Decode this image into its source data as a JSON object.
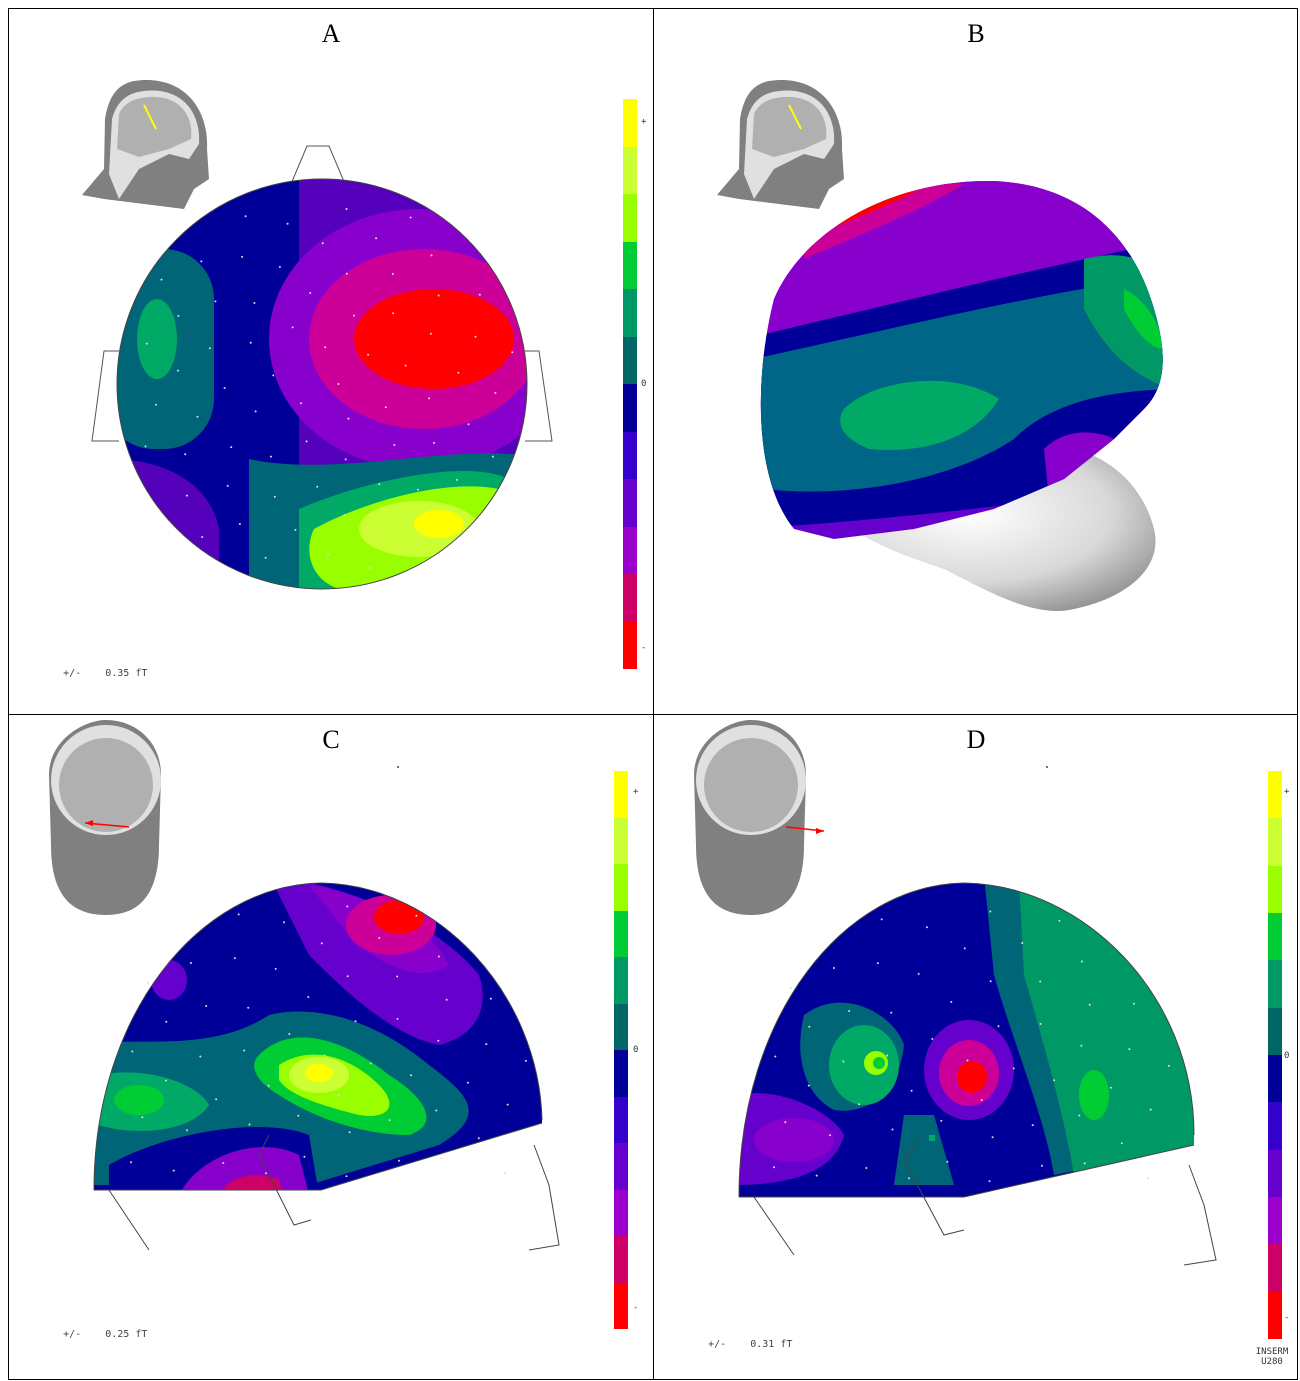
{
  "panels": {
    "A": {
      "label": "A",
      "scale_prefix": "+/-",
      "scale_value": "0.35 fT"
    },
    "B": {
      "label": "B"
    },
    "C": {
      "label": "C",
      "scale_prefix": "+/-",
      "scale_value": "0.25 fT"
    },
    "D": {
      "label": "D",
      "scale_prefix": "+/-",
      "scale_value": "0.31 fT",
      "credit_line1": "INSERM",
      "credit_line2": "U280"
    }
  },
  "colorbar": {
    "plus": "+",
    "zero": "0",
    "minus": "-",
    "colors": [
      "#ffff00",
      "#ccff33",
      "#99ff00",
      "#00cc33",
      "#009966",
      "#006666",
      "#000099",
      "#3300cc",
      "#6600cc",
      "#9900cc",
      "#cc0066",
      "#ff0000"
    ]
  },
  "colors": {
    "red": "#ff0000",
    "magenta": "#cc0099",
    "purple": "#8800cc",
    "violet": "#5500bb",
    "navy": "#000099",
    "teal": "#006677",
    "seagreen": "#00aa66",
    "green": "#00cc33",
    "lime": "#99ff00",
    "yellow": "#ffff00",
    "head_gray": "#808080",
    "skull_light": "#e0e0e0",
    "brain_gray": "#b0b0b0"
  }
}
